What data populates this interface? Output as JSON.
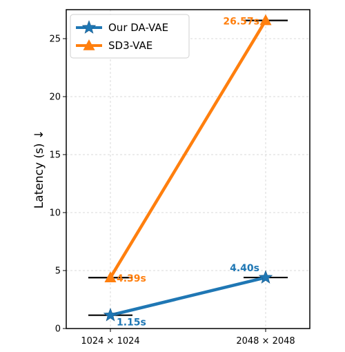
{
  "chart_data": {
    "type": "line",
    "categories": [
      "1024 × 1024",
      "2048 × 2048"
    ],
    "series": [
      {
        "name": "Our DA-VAE",
        "values": [
          1.15,
          4.4
        ],
        "labels": [
          "1.15s",
          "4.40s"
        ],
        "color": "#1f77b4",
        "marker": "star"
      },
      {
        "name": "SD3-VAE",
        "values": [
          4.39,
          26.57
        ],
        "labels": [
          "4.39s",
          "26.57s"
        ],
        "color": "#ff7f0e",
        "marker": "triangle"
      }
    ],
    "ylabel": "Latency (s) ↓",
    "ylim": [
      0,
      27.5
    ],
    "yticks": [
      0,
      5,
      10,
      15,
      20,
      25
    ],
    "grid": true,
    "legend": "top-left"
  }
}
